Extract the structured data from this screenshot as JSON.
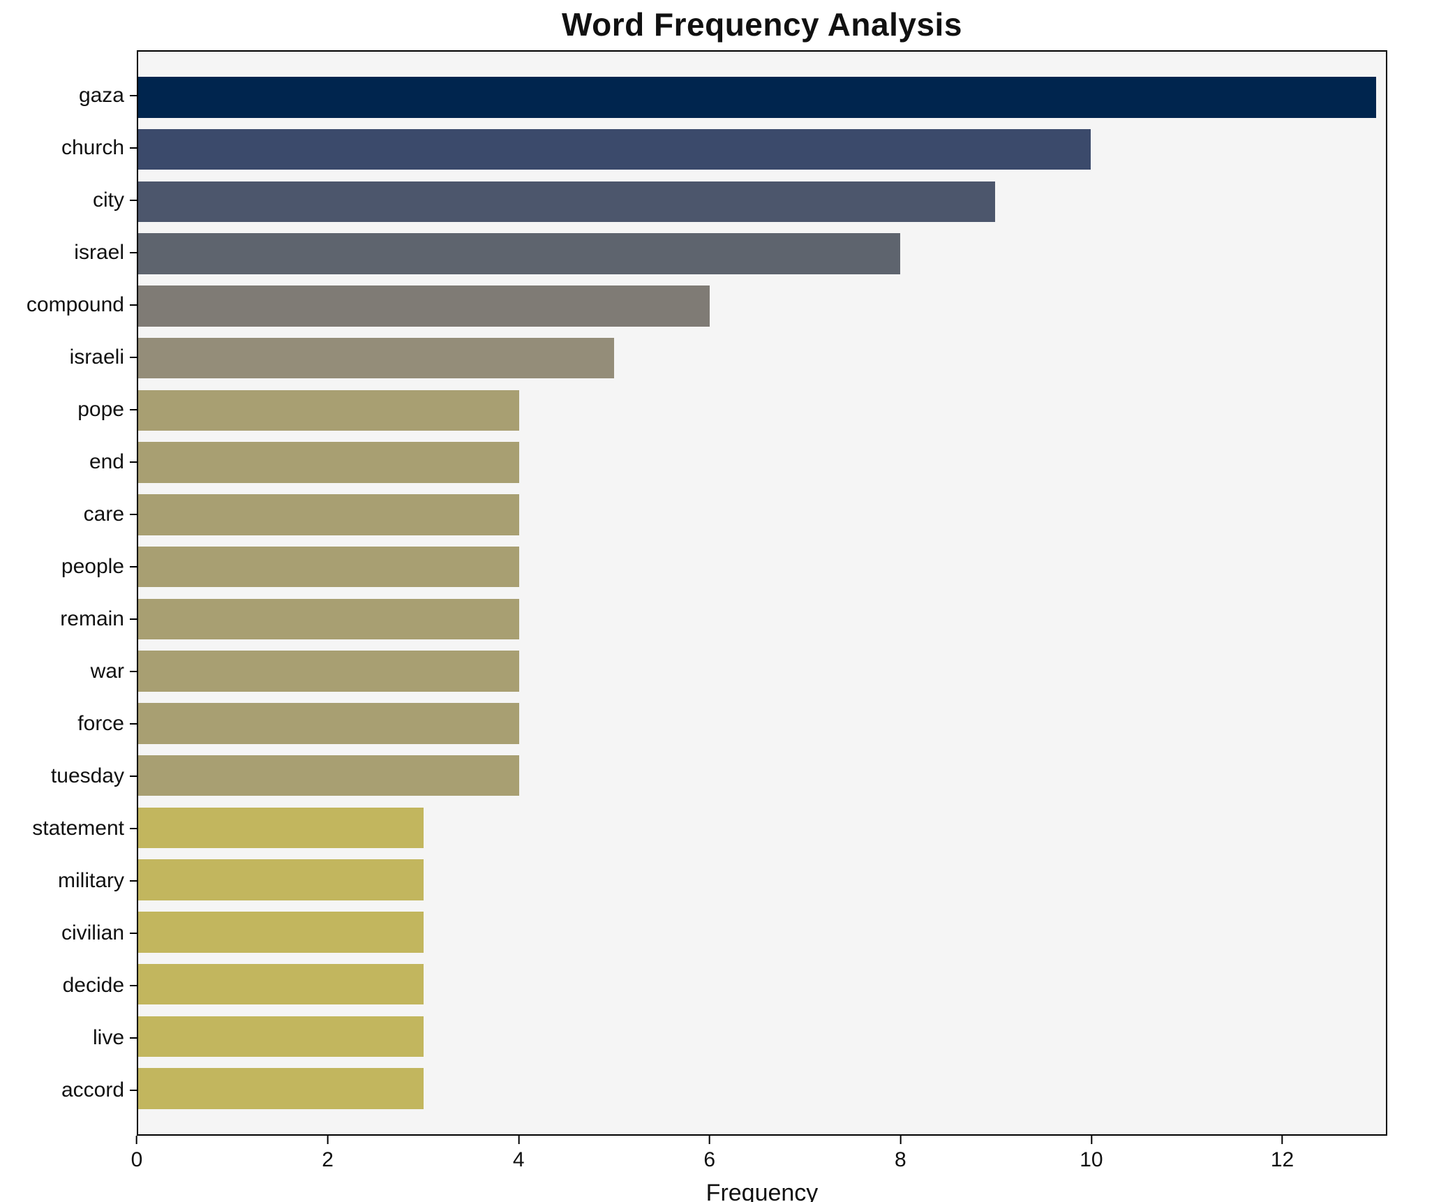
{
  "chart_data": {
    "type": "bar",
    "orientation": "horizontal",
    "title": "Word Frequency Analysis",
    "xlabel": "Frequency",
    "ylabel": "",
    "categories": [
      "gaza",
      "church",
      "city",
      "israel",
      "compound",
      "israeli",
      "pope",
      "end",
      "care",
      "people",
      "remain",
      "war",
      "force",
      "tuesday",
      "statement",
      "military",
      "civilian",
      "decide",
      "live",
      "accord"
    ],
    "values": [
      13,
      10,
      9,
      8,
      6,
      5,
      4,
      4,
      4,
      4,
      4,
      4,
      4,
      4,
      3,
      3,
      3,
      3,
      3,
      3
    ],
    "colors": [
      "#00254e",
      "#3b4a6b",
      "#4c566c",
      "#5e646e",
      "#7f7b75",
      "#948d79",
      "#a89f72",
      "#a89f72",
      "#a89f72",
      "#a89f72",
      "#a89f72",
      "#a89f72",
      "#a89f72",
      "#a89f72",
      "#c2b65e",
      "#c2b65e",
      "#c2b65e",
      "#c2b65e",
      "#c2b65e",
      "#c2b65e"
    ],
    "xlim": [
      0,
      13.1
    ],
    "xticks": [
      0,
      2,
      4,
      6,
      8,
      10,
      12
    ],
    "grid": false,
    "legend_position": "none",
    "plot_background": "#f5f5f5",
    "figure_background": "#ffffff"
  }
}
